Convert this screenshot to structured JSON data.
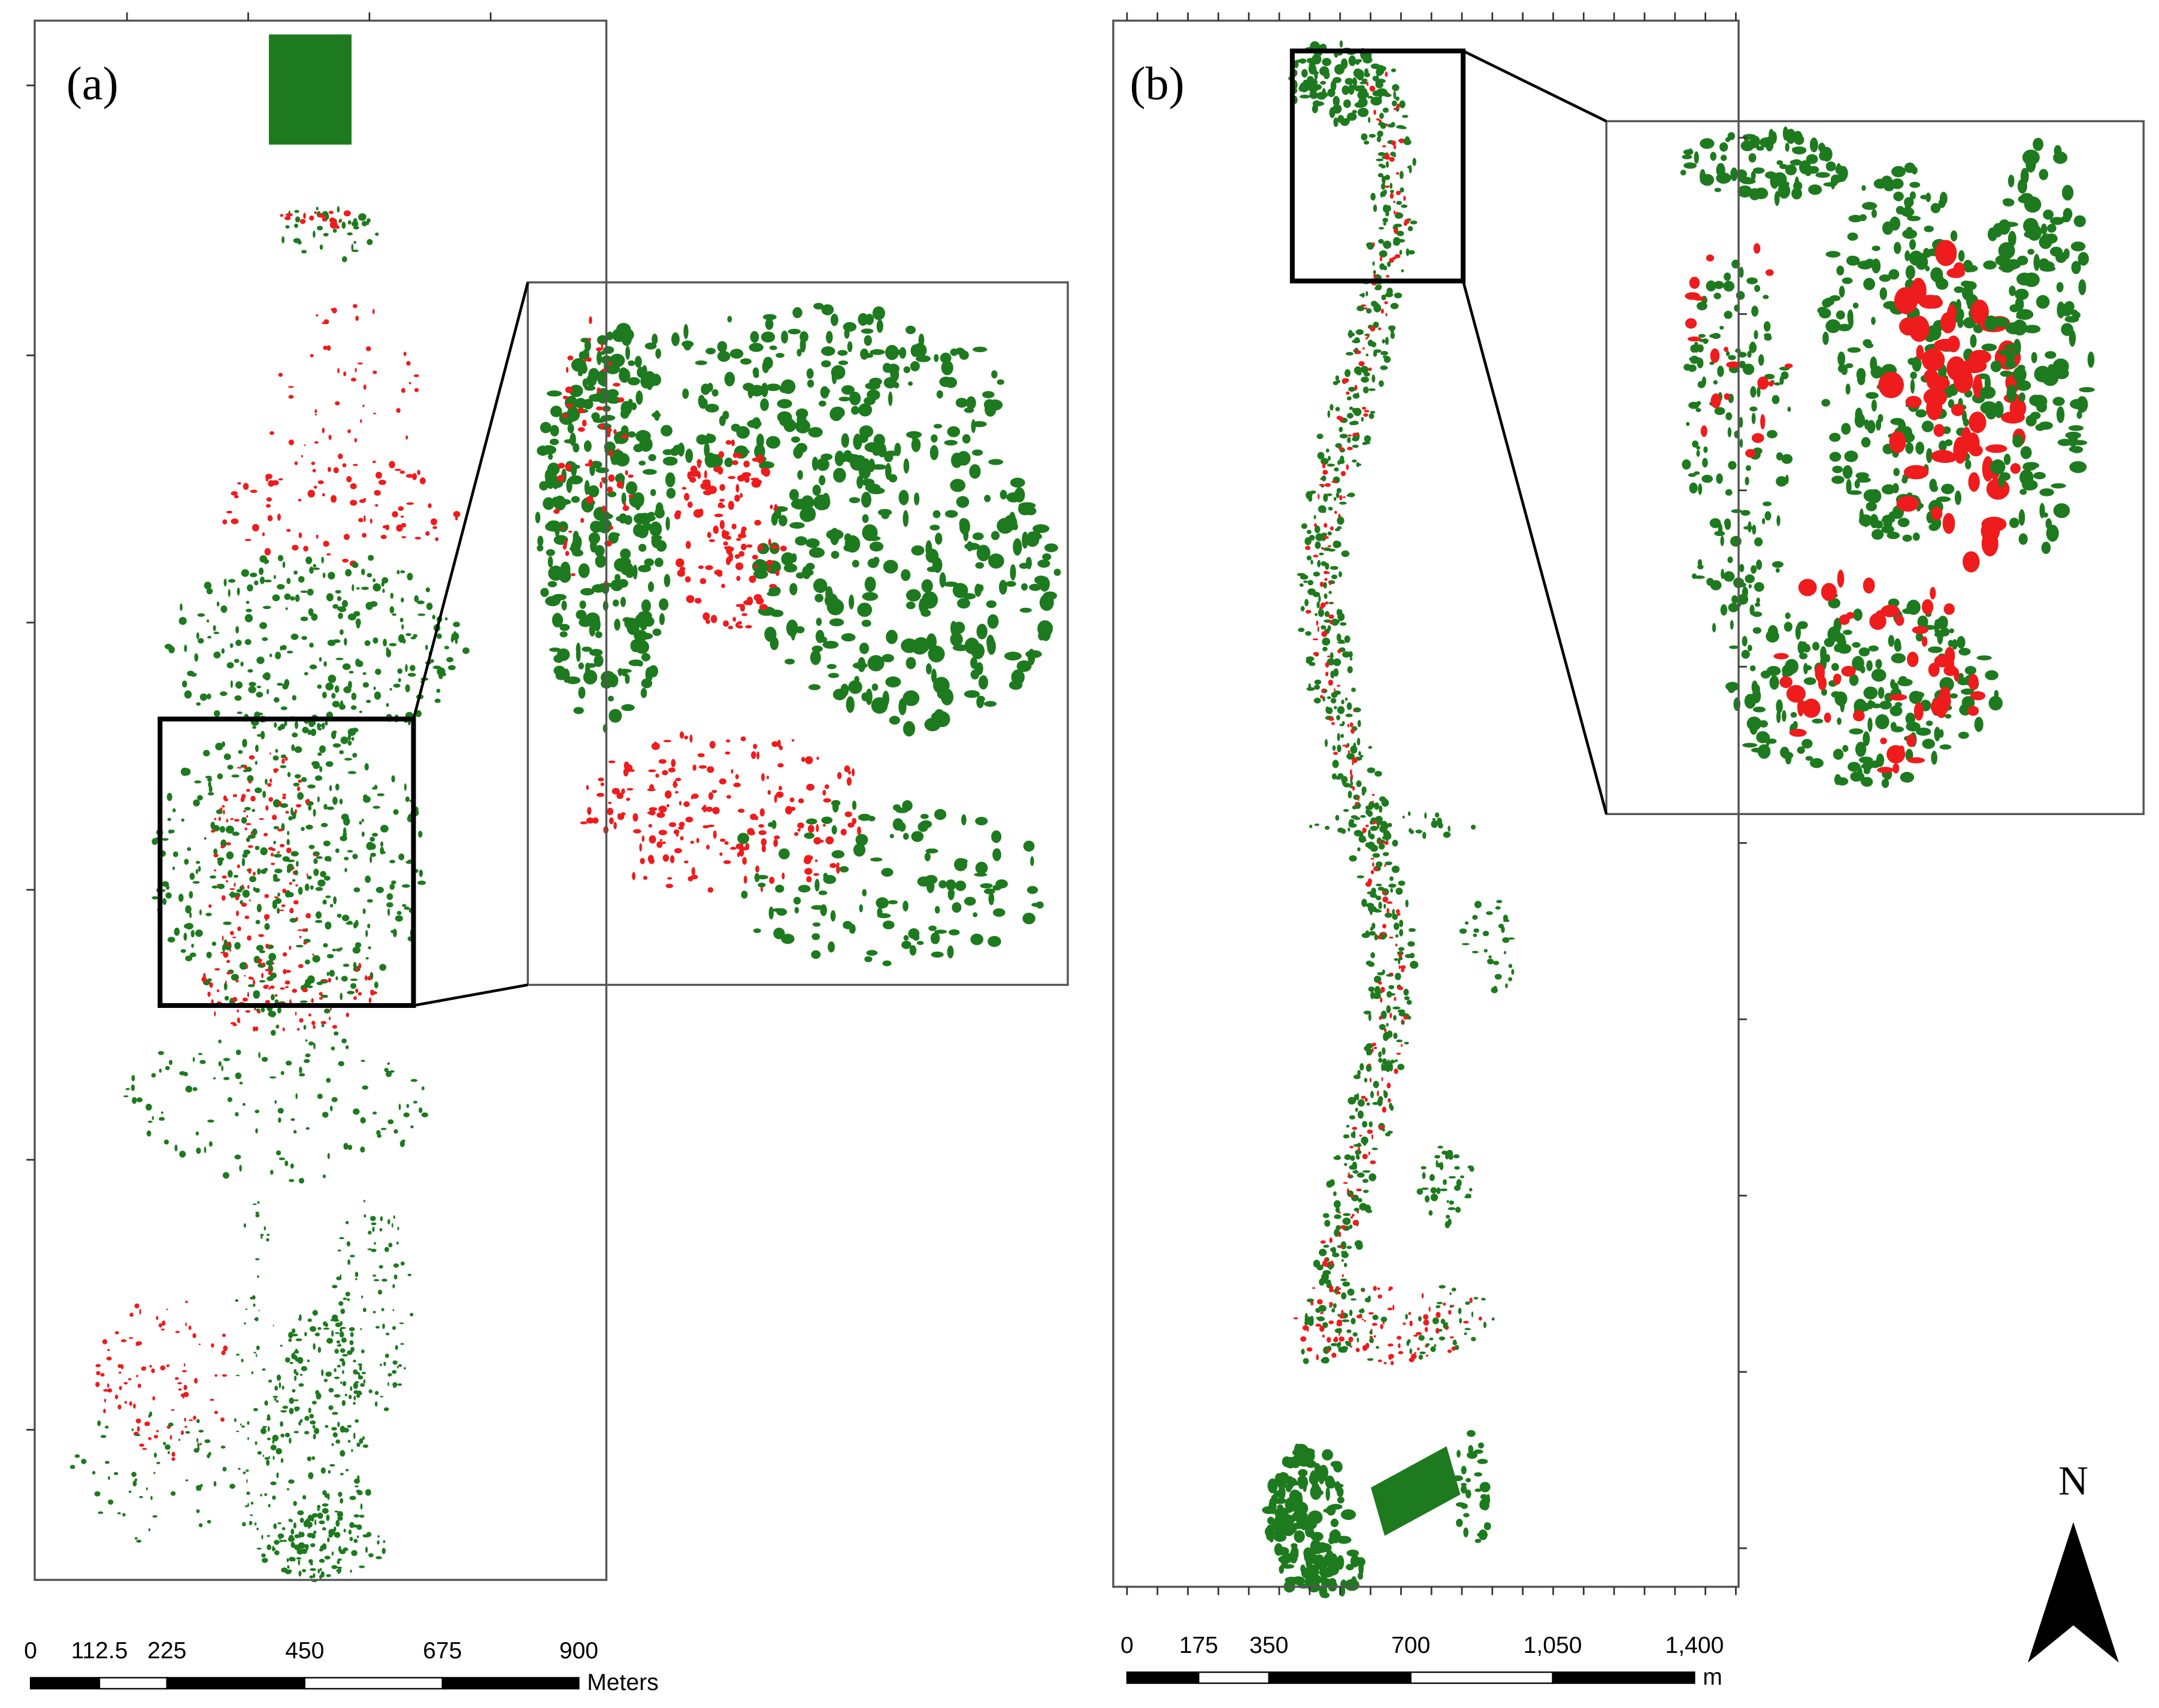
{
  "panels": [
    {
      "label": "(a)",
      "scale_bar": {
        "labels": [
          "0",
          "112.5",
          "225",
          "450",
          "675",
          "900"
        ],
        "unit": "Meters"
      }
    },
    {
      "label": "(b)",
      "scale_bar": {
        "labels": [
          "0",
          "175",
          "350",
          "700",
          "1,050",
          "1,400"
        ],
        "unit": "m"
      }
    }
  ],
  "north_arrow": {
    "label": "N"
  }
}
